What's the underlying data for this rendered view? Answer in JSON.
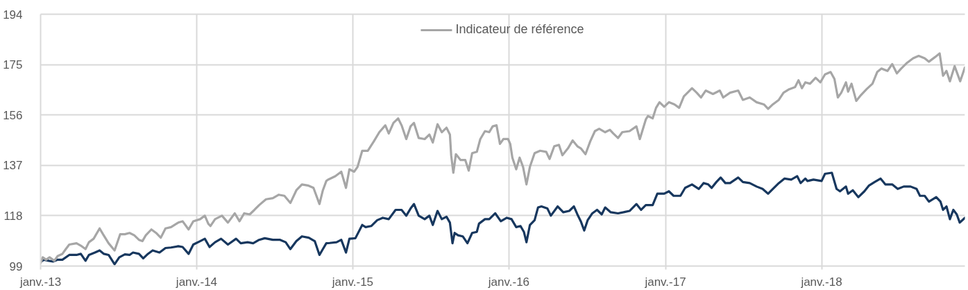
{
  "chart_data": {
    "type": "line",
    "legend": "top",
    "grid": true,
    "xlim": [
      "2013-01-01",
      "2018-12-02"
    ],
    "xticks": [
      {
        "value": "2013-01-01",
        "label": "janv.-13"
      },
      {
        "value": "2014-01-01",
        "label": "janv.-14"
      },
      {
        "value": "2015-01-01",
        "label": "janv.-15"
      },
      {
        "value": "2016-01-01",
        "label": "janv.-16"
      },
      {
        "value": "2017-01-01",
        "label": "janv.-17"
      },
      {
        "value": "2018-01-01",
        "label": "janv.-18"
      }
    ],
    "ylim": [
      99,
      194
    ],
    "yticks": [
      99,
      118,
      137,
      156,
      175,
      194
    ],
    "series": [
      {
        "color": "#17375e",
        "x": [
          "2013-01-01",
          "2013-01-09",
          "2013-01-20",
          "2013-01-30",
          "2013-02-10",
          "2013-02-21",
          "2013-03-09",
          "2013-03-26",
          "2013-04-05",
          "2013-04-16",
          "2013-04-24",
          "2013-05-08",
          "2013-05-19",
          "2013-05-29",
          "2013-06-09",
          "2013-06-23",
          "2013-07-04",
          "2013-07-17",
          "2013-07-28",
          "2013-08-05",
          "2013-08-19",
          "2013-08-29",
          "2013-09-09",
          "2013-09-20",
          "2013-10-06",
          "2013-10-20",
          "2013-11-02",
          "2013-11-19",
          "2013-11-29",
          "2013-12-13",
          "2013-12-24",
          "2014-01-09",
          "2014-01-20",
          "2014-01-31",
          "2014-02-13",
          "2014-02-27",
          "2014-03-15",
          "2014-04-03",
          "2014-04-14",
          "2014-04-30",
          "2014-05-13",
          "2014-05-27",
          "2014-06-09",
          "2014-06-28",
          "2014-07-15",
          "2014-07-28",
          "2014-08-08",
          "2014-08-22",
          "2014-09-04",
          "2014-09-20",
          "2014-10-04",
          "2014-10-15",
          "2014-10-23",
          "2014-10-31",
          "2014-11-08",
          "2014-11-24",
          "2014-12-05",
          "2014-12-16",
          "2014-12-24",
          "2015-01-07",
          "2015-01-23",
          "2015-01-31",
          "2015-02-13",
          "2015-02-27",
          "2015-03-12",
          "2015-03-26",
          "2015-04-11",
          "2015-04-25",
          "2015-05-06",
          "2015-05-16",
          "2015-05-24",
          "2015-06-04",
          "2015-06-18",
          "2015-06-29",
          "2015-07-07",
          "2015-07-18",
          "2015-07-28",
          "2015-08-08",
          "2015-08-16",
          "2015-08-22",
          "2015-08-27",
          "2015-09-04",
          "2015-09-15",
          "2015-09-26",
          "2015-10-07",
          "2015-10-18",
          "2015-10-23",
          "2015-11-06",
          "2015-11-16",
          "2015-11-30",
          "2015-12-13",
          "2015-12-27",
          "2016-01-07",
          "2016-01-18",
          "2016-01-28",
          "2016-02-05",
          "2016-02-11",
          "2016-02-19",
          "2016-03-01",
          "2016-03-09",
          "2016-03-17",
          "2016-03-31",
          "2016-04-08",
          "2016-04-24",
          "2016-05-07",
          "2016-05-21",
          "2016-06-01",
          "2016-06-09",
          "2016-06-17",
          "2016-06-25",
          "2016-07-03",
          "2016-07-14",
          "2016-07-25",
          "2016-08-05",
          "2016-08-13",
          "2016-08-26",
          "2016-09-12",
          "2016-09-25",
          "2016-10-09",
          "2016-10-25",
          "2016-11-05",
          "2016-11-16",
          "2016-12-02",
          "2016-12-13",
          "2016-12-29",
          "2017-01-09",
          "2017-01-20",
          "2017-02-05",
          "2017-02-16",
          "2017-03-04",
          "2017-03-20",
          "2017-03-31",
          "2017-04-11",
          "2017-04-19",
          "2017-04-30",
          "2017-05-10",
          "2017-05-21",
          "2017-06-01",
          "2017-06-20",
          "2017-07-01",
          "2017-07-17",
          "2017-08-02",
          "2017-08-16",
          "2017-08-29",
          "2017-09-09",
          "2017-09-23",
          "2017-10-06",
          "2017-10-22",
          "2017-11-05",
          "2017-11-13",
          "2017-11-24",
          "2017-11-29",
          "2017-12-13",
          "2018-01-01",
          "2018-01-09",
          "2018-01-25",
          "2018-02-05",
          "2018-02-13",
          "2018-02-27",
          "2018-03-04",
          "2018-03-15",
          "2018-03-28",
          "2018-04-11",
          "2018-04-22",
          "2018-05-05",
          "2018-05-19",
          "2018-05-30",
          "2018-06-15",
          "2018-06-28",
          "2018-07-12",
          "2018-07-28",
          "2018-08-11",
          "2018-08-19",
          "2018-08-30",
          "2018-09-09",
          "2018-09-26",
          "2018-10-06",
          "2018-10-12",
          "2018-10-20",
          "2018-10-28",
          "2018-11-05",
          "2018-11-13",
          "2018-11-20",
          "2018-12-02"
        ],
        "values": [
          100.6,
          101.4,
          101,
          100.7,
          101.4,
          101.4,
          103.2,
          103.2,
          103.6,
          101,
          103.2,
          104.1,
          104.9,
          103.6,
          103.2,
          99.7,
          102.3,
          103.4,
          103.2,
          104.1,
          103.6,
          101.9,
          103.6,
          104.9,
          104.1,
          105.8,
          106,
          106.5,
          106.2,
          103.6,
          107.1,
          108.4,
          109.3,
          106.2,
          108,
          109.3,
          107.1,
          109.3,
          107.6,
          108,
          107.6,
          108.9,
          109.5,
          108.9,
          108.9,
          108,
          105.4,
          108.4,
          110.2,
          109.7,
          108.4,
          103.2,
          105.4,
          107.6,
          107.7,
          108,
          108.9,
          104.1,
          109.3,
          109.5,
          114.5,
          113.7,
          114.1,
          116.3,
          117.2,
          116.7,
          120.2,
          120.2,
          118,
          120.7,
          122.4,
          118,
          116.7,
          118,
          114.5,
          119.8,
          116.7,
          117.6,
          115.4,
          107.6,
          111.5,
          110.6,
          110.2,
          107.6,
          111.5,
          111.9,
          115,
          116.7,
          116.7,
          118.9,
          115.9,
          117.2,
          116.7,
          113.7,
          114.1,
          111.9,
          108,
          114.5,
          116.3,
          121.1,
          121.5,
          120.7,
          118,
          121.5,
          119.3,
          119.8,
          121.5,
          118.5,
          115.9,
          112.4,
          116.3,
          118.9,
          120.2,
          118.5,
          121.1,
          119.3,
          118.9,
          119.3,
          119.8,
          122.4,
          120.2,
          122,
          122,
          126.3,
          126.3,
          127.2,
          125.5,
          125.5,
          128.5,
          129.8,
          128.1,
          130.3,
          129.8,
          128.5,
          130.7,
          132.4,
          130.3,
          130.3,
          132.4,
          130.7,
          130.3,
          129,
          128.1,
          126.3,
          128.1,
          130.3,
          132,
          131.6,
          132.9,
          130.3,
          132,
          131.1,
          131.6,
          131.1,
          133.8,
          134.2,
          128.1,
          127.2,
          129,
          126.3,
          127.6,
          125,
          127.2,
          129.4,
          130.7,
          132,
          129.8,
          129.8,
          128.1,
          129,
          129,
          128.1,
          125.5,
          125.5,
          123.3,
          125,
          123.3,
          120.2,
          121.5,
          116.7,
          120.2,
          118.5,
          115.4,
          117.2
        ]
      },
      {
        "name": "Indicateur de référence",
        "color": "#a6a6a6",
        "x": [
          "2013-01-01",
          "2013-01-06",
          "2013-01-14",
          "2013-01-22",
          "2013-02-02",
          "2013-02-10",
          "2013-02-21",
          "2013-03-01",
          "2013-03-09",
          "2013-03-26",
          "2013-04-05",
          "2013-04-16",
          "2013-04-24",
          "2013-05-05",
          "2013-05-19",
          "2013-05-27",
          "2013-06-09",
          "2013-06-23",
          "2013-07-06",
          "2013-07-17",
          "2013-07-28",
          "2013-08-08",
          "2013-08-19",
          "2013-08-27",
          "2013-09-04",
          "2013-09-17",
          "2013-09-28",
          "2013-10-09",
          "2013-10-20",
          "2013-11-02",
          "2013-11-19",
          "2013-11-29",
          "2013-12-13",
          "2013-12-24",
          "2014-01-09",
          "2014-01-20",
          "2014-01-28",
          "2014-02-02",
          "2014-02-13",
          "2014-03-01",
          "2014-03-15",
          "2014-03-31",
          "2014-04-11",
          "2014-04-22",
          "2014-05-05",
          "2014-05-16",
          "2014-05-27",
          "2014-06-12",
          "2014-06-28",
          "2014-07-12",
          "2014-07-25",
          "2014-08-08",
          "2014-08-22",
          "2014-09-04",
          "2014-09-18",
          "2014-10-01",
          "2014-10-15",
          "2014-10-23",
          "2014-10-31",
          "2014-11-04",
          "2014-11-21",
          "2014-12-05",
          "2014-12-16",
          "2014-12-24",
          "2015-01-04",
          "2015-01-12",
          "2015-01-23",
          "2015-02-05",
          "2015-02-19",
          "2015-03-04",
          "2015-03-18",
          "2015-03-26",
          "2015-04-06",
          "2015-04-17",
          "2015-04-25",
          "2015-05-06",
          "2015-05-16",
          "2015-05-24",
          "2015-06-04",
          "2015-06-18",
          "2015-06-29",
          "2015-07-07",
          "2015-07-18",
          "2015-07-28",
          "2015-08-08",
          "2015-08-16",
          "2015-08-19",
          "2015-08-24",
          "2015-08-30",
          "2015-09-10",
          "2015-09-21",
          "2015-09-29",
          "2015-10-07",
          "2015-10-18",
          "2015-10-26",
          "2015-11-06",
          "2015-11-16",
          "2015-11-24",
          "2015-12-03",
          "2015-12-11",
          "2015-12-19",
          "2015-12-30",
          "2016-01-04",
          "2016-01-09",
          "2016-01-18",
          "2016-01-26",
          "2016-02-03",
          "2016-02-11",
          "2016-02-19",
          "2016-03-01",
          "2016-03-14",
          "2016-03-28",
          "2016-04-05",
          "2016-04-16",
          "2016-04-27",
          "2016-05-05",
          "2016-05-18",
          "2016-05-29",
          "2016-06-09",
          "2016-06-17",
          "2016-06-28",
          "2016-07-09",
          "2016-07-20",
          "2016-07-30",
          "2016-08-13",
          "2016-08-24",
          "2016-09-01",
          "2016-09-12",
          "2016-09-22",
          "2016-10-09",
          "2016-10-25",
          "2016-11-02",
          "2016-11-07",
          "2016-11-16",
          "2016-11-21",
          "2016-12-02",
          "2016-12-10",
          "2016-12-18",
          "2016-12-29",
          "2017-01-09",
          "2017-01-22",
          "2017-02-02",
          "2017-02-13",
          "2017-02-24",
          "2017-03-04",
          "2017-03-15",
          "2017-03-25",
          "2017-04-05",
          "2017-04-22",
          "2017-05-08",
          "2017-05-16",
          "2017-06-01",
          "2017-06-20",
          "2017-07-01",
          "2017-07-17",
          "2017-08-02",
          "2017-08-19",
          "2017-08-29",
          "2017-09-09",
          "2017-09-23",
          "2017-10-04",
          "2017-10-17",
          "2017-10-31",
          "2017-11-08",
          "2017-11-16",
          "2017-11-24",
          "2017-12-05",
          "2017-12-18",
          "2017-12-29",
          "2018-01-09",
          "2018-01-22",
          "2018-01-31",
          "2018-02-08",
          "2018-02-16",
          "2018-02-27",
          "2018-03-04",
          "2018-03-12",
          "2018-03-23",
          "2018-04-03",
          "2018-04-16",
          "2018-04-30",
          "2018-05-11",
          "2018-05-21",
          "2018-06-04",
          "2018-06-15",
          "2018-06-26",
          "2018-07-06",
          "2018-07-20",
          "2018-08-03",
          "2018-08-16",
          "2018-08-30",
          "2018-09-09",
          "2018-09-23",
          "2018-10-04",
          "2018-10-12",
          "2018-10-20",
          "2018-10-28",
          "2018-11-08",
          "2018-11-21",
          "2018-12-02"
        ],
        "values": [
          100.1,
          102.3,
          101.4,
          102.3,
          101,
          102.8,
          103.6,
          105.4,
          107.1,
          107.6,
          106.7,
          105.4,
          108,
          109.3,
          113.2,
          111,
          107.6,
          104.9,
          111,
          111,
          111.5,
          110.6,
          108.9,
          108.4,
          110.6,
          112.8,
          111.5,
          109.7,
          113.2,
          113.7,
          115.4,
          115.9,
          112.8,
          115.9,
          116.7,
          118,
          115,
          114.1,
          116.7,
          118,
          115.4,
          118.9,
          115.9,
          118.9,
          118.5,
          120.2,
          122,
          124.2,
          124.6,
          125.9,
          125.5,
          122.8,
          127.6,
          129.8,
          129.4,
          128.5,
          122.4,
          127.6,
          131.1,
          131.6,
          132.9,
          134.6,
          128.5,
          135.5,
          134.6,
          136.4,
          142.5,
          142.5,
          146,
          149.5,
          152.1,
          149,
          153,
          154.7,
          152.1,
          146.9,
          151.7,
          153,
          147.3,
          146.9,
          148.6,
          145.6,
          152.5,
          149.5,
          151.2,
          148.6,
          140.7,
          134.2,
          141.2,
          139,
          139,
          135,
          141.6,
          142.1,
          146.9,
          149.9,
          149.5,
          151.7,
          152.1,
          145.1,
          146.9,
          146.9,
          145.1,
          139.9,
          135.5,
          139.9,
          136.4,
          129.8,
          136.4,
          141.6,
          142.5,
          142.1,
          139.4,
          144.2,
          144.7,
          140.8,
          143.4,
          146.4,
          144.2,
          143.4,
          141.2,
          146,
          149.9,
          150.8,
          149.5,
          150.4,
          149,
          147.3,
          149.5,
          149.9,
          151.7,
          146.9,
          149.5,
          154.3,
          155.6,
          154.7,
          158.7,
          160.8,
          159.1,
          160.8,
          160,
          158.7,
          163,
          164.8,
          166.1,
          164.4,
          162.6,
          165.2,
          163.9,
          165.2,
          162.6,
          164.4,
          165.2,
          161.7,
          162.6,
          160.8,
          160,
          158.3,
          160,
          161.7,
          164.4,
          165.7,
          166.5,
          169.1,
          166.1,
          168.3,
          167.8,
          170,
          168.3,
          171.3,
          172.2,
          169.6,
          162.6,
          164.4,
          168.3,
          164.8,
          167.8,
          161.3,
          163.5,
          165.7,
          167.8,
          172.2,
          173.5,
          172.6,
          175.2,
          171.7,
          173.5,
          175.7,
          177.4,
          178.3,
          177.4,
          176.1,
          177.8,
          179.2,
          170.8,
          172.6,
          168.7,
          174.4,
          168.7,
          173.9
        ]
      }
    ]
  }
}
